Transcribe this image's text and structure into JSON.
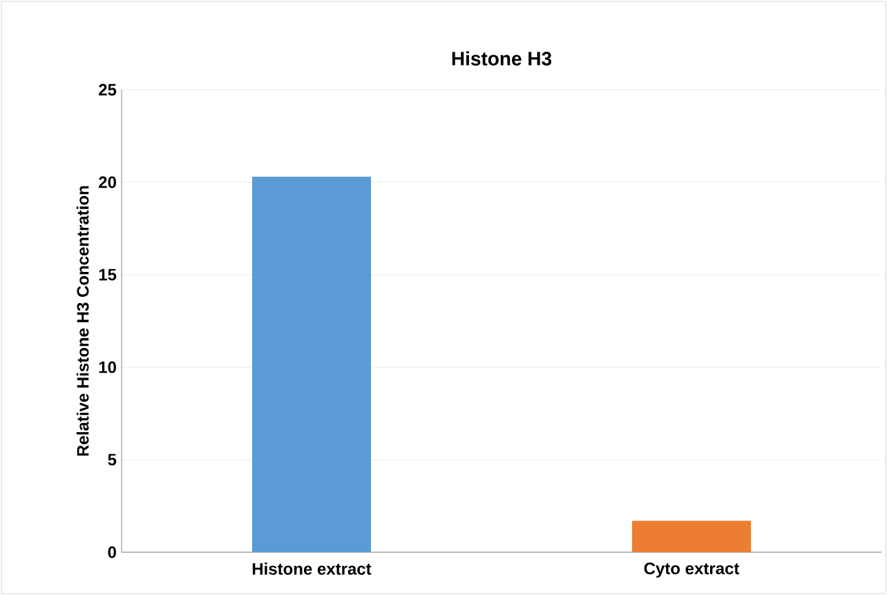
{
  "chart_data": {
    "type": "bar",
    "title": "Histone H3",
    "ylabel": "Relative Histone H3 Concentration",
    "categories": [
      "Histone extract",
      "Cyto extract"
    ],
    "values": [
      20.3,
      1.7
    ],
    "colors": [
      "#5b9bd5",
      "#ed7d31"
    ],
    "ylim": [
      0,
      25
    ],
    "yticks": [
      0,
      5,
      10,
      15,
      20,
      25
    ],
    "grid": "y"
  }
}
